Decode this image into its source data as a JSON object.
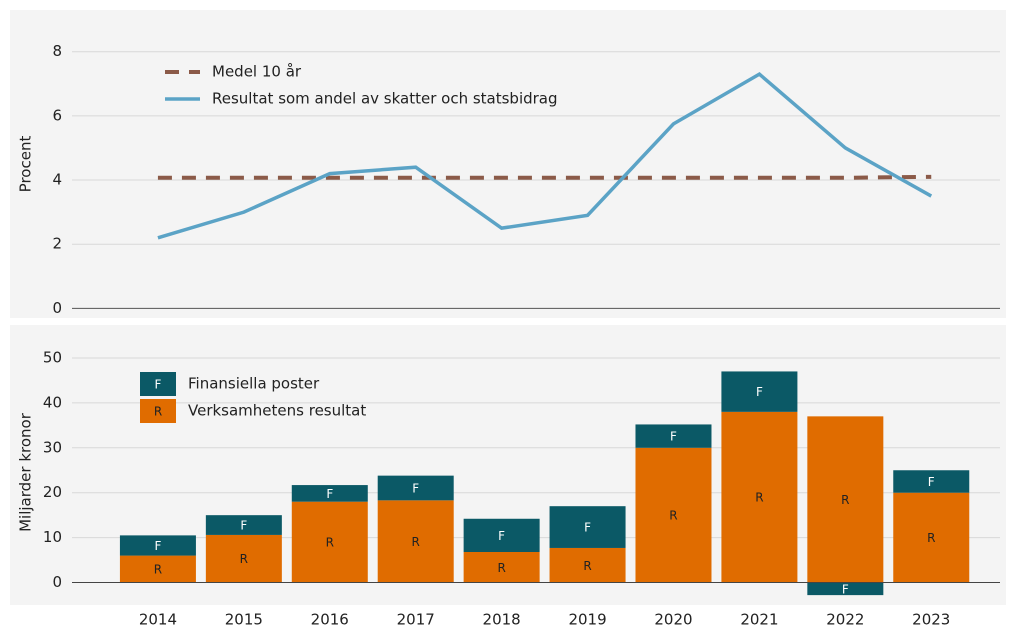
{
  "chart_data": [
    {
      "type": "line",
      "ylabel": "Procent",
      "ylim": [
        -0.3,
        9.3
      ],
      "yticks": [
        0,
        2,
        4,
        6,
        8
      ],
      "grid": true,
      "series": [
        {
          "name": "Medel 10 år",
          "color": "#8b5a48",
          "dashed": true,
          "values": [
            4.07,
            4.07,
            4.07,
            4.07,
            4.07,
            4.07,
            4.07,
            4.07,
            4.07,
            4.1
          ]
        },
        {
          "name": "Resultat som andel av skatter och statsbidrag",
          "color": "#5ba3c6",
          "values": [
            2.2,
            3.0,
            4.2,
            4.4,
            2.5,
            2.9,
            5.75,
            7.3,
            5.0,
            3.5
          ]
        }
      ]
    },
    {
      "type": "stacked_bar",
      "ylabel": "Miljarder kronor",
      "ylim": [
        -5,
        54
      ],
      "yticks": [
        0,
        10,
        20,
        30,
        40,
        50
      ],
      "grid": true,
      "categories": [
        "2014",
        "2015",
        "2016",
        "2017",
        "2018",
        "2019",
        "2020",
        "2021",
        "2022",
        "2023"
      ],
      "series": [
        {
          "name": "Verksamhetens resultat",
          "label": "R",
          "color": "#e06c00",
          "values": [
            6,
            10.6,
            18,
            18.3,
            6.8,
            7.7,
            30,
            38,
            37,
            20
          ]
        },
        {
          "name": "Finansiella poster",
          "label": "F",
          "color": "#0b5966",
          "values": [
            4.5,
            4.4,
            3.7,
            5.5,
            7.4,
            9.3,
            5.2,
            9,
            -2.8,
            5
          ]
        }
      ]
    }
  ]
}
